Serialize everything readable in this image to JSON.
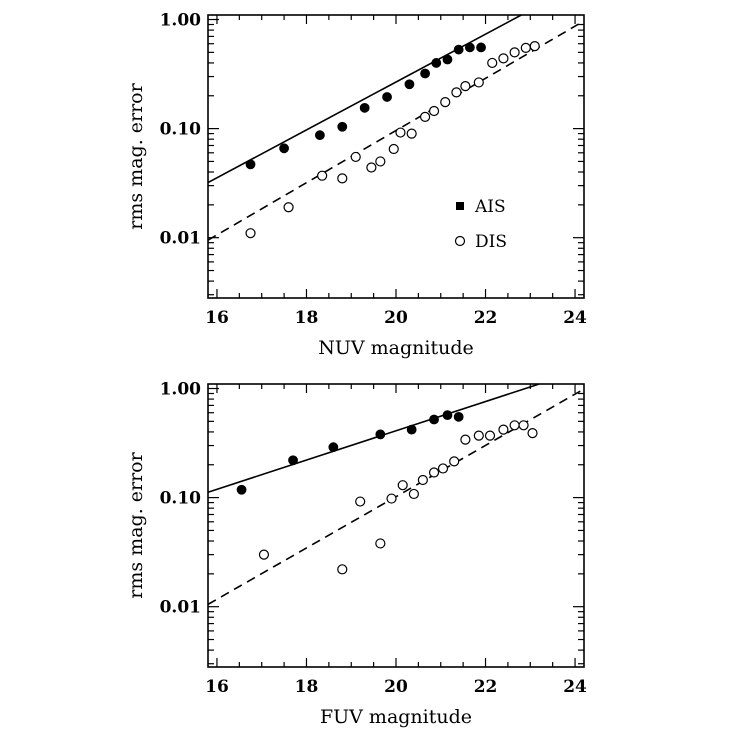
{
  "chart_data": [
    {
      "type": "scatter",
      "xlabel": "NUV magnitude",
      "ylabel": "rms mag. error",
      "xlim": [
        15.8,
        24.2
      ],
      "ylim": [
        0.0028,
        1.1
      ],
      "yscale": "log",
      "xticks": [
        "16",
        "18",
        "20",
        "22",
        "24"
      ],
      "yticks": [
        "0.01",
        "0.10",
        "1.00"
      ],
      "legend_position": "right-middle",
      "series": [
        {
          "name": "AIS",
          "marker": "filled-circle",
          "x": [
            16.75,
            17.5,
            18.3,
            18.8,
            19.3,
            19.8,
            20.3,
            20.65,
            20.9,
            21.15,
            21.4,
            21.65,
            21.9
          ],
          "y": [
            0.047,
            0.066,
            0.087,
            0.104,
            0.155,
            0.195,
            0.255,
            0.32,
            0.4,
            0.43,
            0.53,
            0.555,
            0.555
          ]
        },
        {
          "name": "DIS",
          "marker": "open-circle",
          "x": [
            16.75,
            17.6,
            18.35,
            18.8,
            19.1,
            19.45,
            19.65,
            19.95,
            20.1,
            20.35,
            20.65,
            20.85,
            21.1,
            21.35,
            21.55,
            21.85,
            22.15,
            22.4,
            22.65,
            22.9,
            23.1
          ],
          "y": [
            0.011,
            0.019,
            0.037,
            0.035,
            0.055,
            0.044,
            0.05,
            0.065,
            0.092,
            0.09,
            0.128,
            0.145,
            0.175,
            0.215,
            0.245,
            0.265,
            0.4,
            0.44,
            0.5,
            0.55,
            0.57
          ]
        }
      ],
      "fit_lines": [
        {
          "name": "AIS fit",
          "style": "solid",
          "x": [
            15.8,
            22.8
          ],
          "y": [
            0.032,
            1.1
          ]
        },
        {
          "name": "DIS fit",
          "style": "dashed",
          "x": [
            15.8,
            24.2
          ],
          "y": [
            0.0095,
            0.97
          ]
        }
      ],
      "legend": [
        {
          "label": "AIS",
          "marker": "filled"
        },
        {
          "label": "DIS",
          "marker": "open"
        }
      ]
    },
    {
      "type": "scatter",
      "xlabel": "FUV magnitude",
      "ylabel": "rms mag. error",
      "xlim": [
        15.8,
        24.2
      ],
      "ylim": [
        0.0028,
        1.1
      ],
      "yscale": "log",
      "xticks": [
        "16",
        "18",
        "20",
        "22",
        "24"
      ],
      "yticks": [
        "0.01",
        "0.10",
        "1.00"
      ],
      "series": [
        {
          "name": "AIS",
          "marker": "filled-circle",
          "x": [
            16.55,
            17.7,
            18.6,
            19.65,
            20.35,
            20.85,
            21.15,
            21.4
          ],
          "y": [
            0.118,
            0.22,
            0.29,
            0.38,
            0.42,
            0.52,
            0.57,
            0.55
          ]
        },
        {
          "name": "DIS",
          "marker": "open-circle",
          "x": [
            17.05,
            18.8,
            19.2,
            19.65,
            19.9,
            20.15,
            20.4,
            20.6,
            20.85,
            21.05,
            21.3,
            21.55,
            21.85,
            22.1,
            22.4,
            22.65,
            22.85,
            23.05
          ],
          "y": [
            0.03,
            0.022,
            0.092,
            0.038,
            0.098,
            0.13,
            0.108,
            0.145,
            0.17,
            0.185,
            0.215,
            0.34,
            0.37,
            0.37,
            0.42,
            0.46,
            0.46,
            0.39
          ]
        }
      ],
      "fit_lines": [
        {
          "name": "AIS fit",
          "style": "solid",
          "x": [
            15.8,
            23.2
          ],
          "y": [
            0.112,
            1.1
          ]
        },
        {
          "name": "DIS fit",
          "style": "dashed",
          "x": [
            15.8,
            24.2
          ],
          "y": [
            0.0105,
            0.99
          ]
        }
      ],
      "legend": []
    }
  ]
}
